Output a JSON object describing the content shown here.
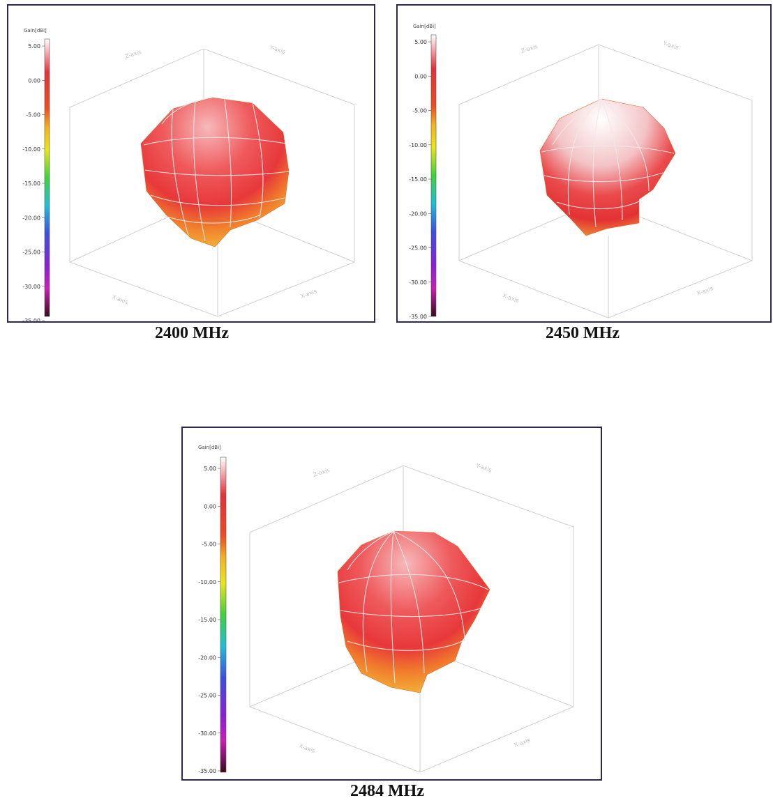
{
  "colors": {
    "frame": "#2b2950",
    "grid": "#d0d0d0",
    "mesh": "#f0f0f0",
    "scale": [
      "#ffffff",
      "#e3313a",
      "#f0701f",
      "#f2b51c",
      "#eae516",
      "#3fd23a",
      "#1fbfd6",
      "#3a4fe0",
      "#8b1fd6",
      "#c71fb5",
      "#3a0a1a"
    ]
  },
  "plots": [
    {
      "id": "p2400",
      "caption": "2400 MHz",
      "legend_title": "Gain[dBi]",
      "ticks": [
        "5.00",
        "0.00",
        "-5.00",
        "-10.00",
        "-15.00",
        "-20.00",
        "-25.00",
        "-30.00",
        "-35.00"
      ],
      "axis_labels": [
        "Z-axis",
        "Y-axis",
        "X-axis",
        "X-axis"
      ],
      "scale_max": 5.0,
      "scale_min": -35.0
    },
    {
      "id": "p2450",
      "caption": "2450 MHz",
      "legend_title": "Gain[dBi]",
      "ticks": [
        "5.00",
        "0.00",
        "-5.00",
        "-10.00",
        "-15.00",
        "-20.00",
        "-25.00",
        "-30.00",
        "-35.00"
      ],
      "axis_labels": [
        "Z-axis",
        "Y-axis",
        "X-axis",
        "X-axis"
      ],
      "scale_max": 5.0,
      "scale_min": -35.0
    },
    {
      "id": "p2484",
      "caption": "2484 MHz",
      "legend_title": "Gain[dBi]",
      "ticks": [
        "5.00",
        "0.00",
        "-5.00",
        "-10.00",
        "-15.00",
        "-20.00",
        "-25.00",
        "-30.00",
        "-35.00"
      ],
      "axis_labels": [
        "Z-axis",
        "Y-axis",
        "X-axis",
        "X-axis"
      ],
      "scale_max": 5.0,
      "scale_min": -35.0
    }
  ]
}
